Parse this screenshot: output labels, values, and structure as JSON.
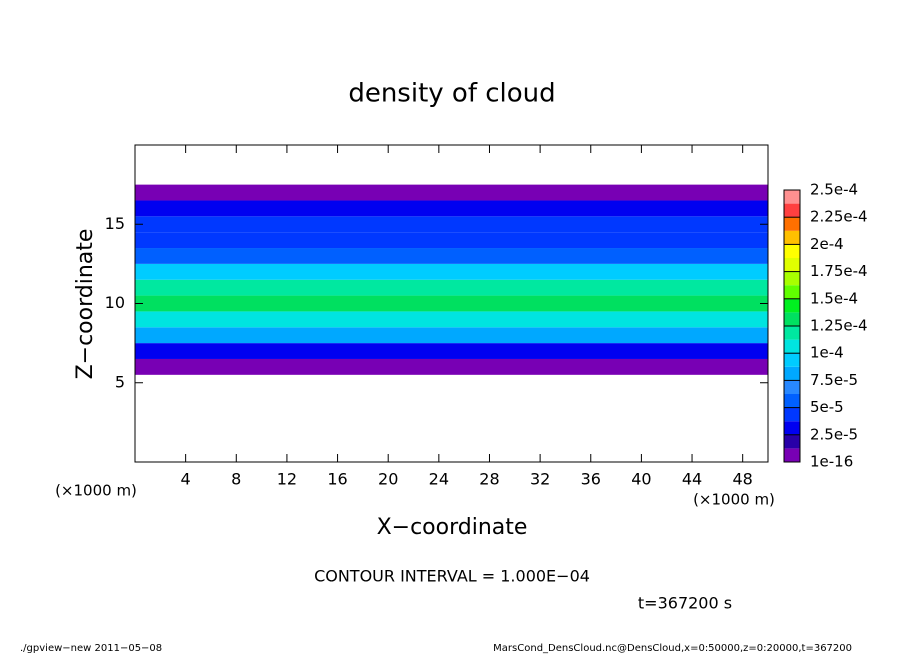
{
  "chart_data": {
    "type": "heatmap",
    "title": "density of cloud",
    "xlabel": "X−coordinate",
    "ylabel": "Z−coordinate",
    "x_unit": "(×1000 m)",
    "y_unit": "(×1000 m)",
    "xlim": [
      0,
      50
    ],
    "xticks": [
      4,
      8,
      12,
      16,
      20,
      24,
      28,
      32,
      36,
      40,
      44,
      48
    ],
    "ylim": [
      0,
      20
    ],
    "yticks": [
      5,
      10,
      15
    ],
    "z": [
      6,
      7,
      8,
      9,
      10,
      11,
      12,
      13,
      14,
      15,
      16,
      17
    ],
    "values": [
      1e-05,
      3e-05,
      8e-05,
      0.00011,
      0.000135,
      0.00012,
      9e-05,
      6e-05,
      4e-05,
      4e-05,
      2.5e-05,
      1e-05
    ],
    "colorbar_ticks": [
      {
        "value": 1e-16,
        "label": "1e-16"
      },
      {
        "value": 2.5e-05,
        "label": "2.5e-5"
      },
      {
        "value": 5e-05,
        "label": "5e-5"
      },
      {
        "value": 7.5e-05,
        "label": "7.5e-5"
      },
      {
        "value": 0.0001,
        "label": "1e-4"
      },
      {
        "value": 0.000125,
        "label": "1.25e-4"
      },
      {
        "value": 0.00015,
        "label": "1.5e-4"
      },
      {
        "value": 0.000175,
        "label": "1.75e-4"
      },
      {
        "value": 0.0002,
        "label": "2e-4"
      },
      {
        "value": 0.000225,
        "label": "2.25e-4"
      },
      {
        "value": 0.00025,
        "label": "2.5e-4"
      }
    ],
    "colors": [
      "#7800b4",
      "#2800a8",
      "#0000f0",
      "#0038ff",
      "#0060ff",
      "#2888ff",
      "#00a8ff",
      "#00ccff",
      "#00e4e0",
      "#00e8a0",
      "#00e060",
      "#00f020",
      "#60ff00",
      "#a8ff00",
      "#e0ff00",
      "#ffff00",
      "#ffc000",
      "#ff7000",
      "#ff4040",
      "#ff9090"
    ],
    "contour_note": "CONTOUR INTERVAL = 1.000E−04",
    "time_note": "t=367200 s",
    "footer_left": "./gpview−new 2011−05−08",
    "footer_right": "MarsCond_DensCloud.nc@DensCloud,x=0:50000,z=0:20000,t=367200"
  }
}
